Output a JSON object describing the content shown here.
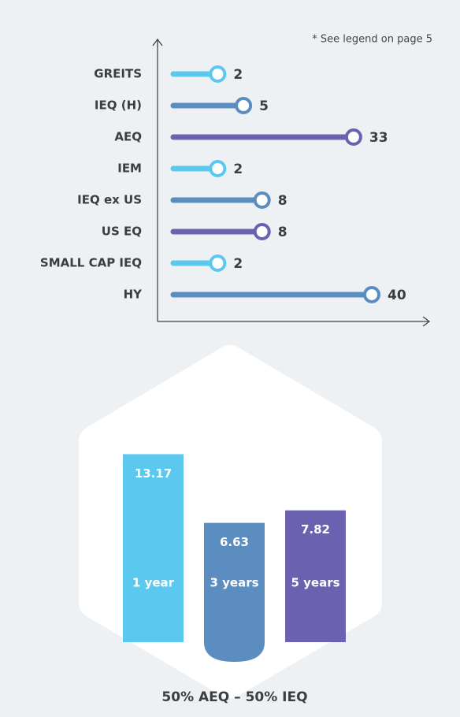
{
  "chart_data": [
    {
      "type": "lollipop",
      "note": "* See legend on page 5",
      "categories": [
        "GREITS",
        "IEQ (H)",
        "AEQ",
        "IEM",
        "IEQ ex US",
        "US EQ",
        "SMALL CAP IEQ",
        "HY"
      ],
      "values": [
        2,
        5,
        33,
        2,
        8,
        8,
        2,
        40
      ],
      "colors": [
        "#5bc8f0",
        "#5b8dc0",
        "#6a62b0",
        "#5bc8f0",
        "#5b8dc0",
        "#6a62b0",
        "#5bc8f0",
        "#5b8dc0"
      ],
      "xlim": [
        0,
        40
      ],
      "xscale": "sqrt"
    },
    {
      "type": "bar",
      "title": "50% AEQ – 50% IEQ",
      "categories": [
        "1 year",
        "3 years",
        "5 years"
      ],
      "values": [
        13.17,
        6.63,
        7.82
      ],
      "colors": [
        "#5bc8f0",
        "#5b8dc0",
        "#6a62b0"
      ],
      "ylim": [
        0,
        15
      ]
    }
  ]
}
